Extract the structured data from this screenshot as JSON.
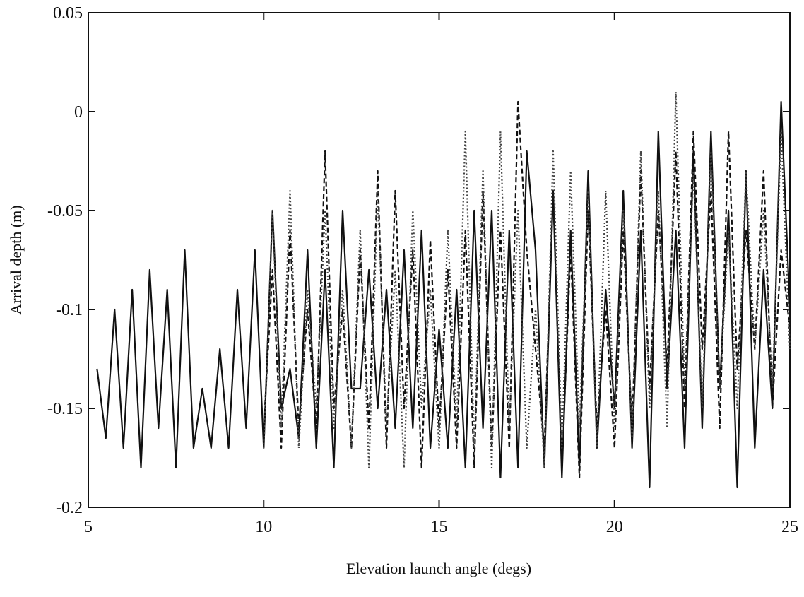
{
  "chart_data": {
    "type": "line",
    "xlabel": "Elevation launch angle (degs)",
    "ylabel": "Arrival depth (m)",
    "x": [
      5.25,
      5.5,
      5.75,
      6,
      6.25,
      6.5,
      6.75,
      7,
      7.25,
      7.5,
      7.75,
      8,
      8.25,
      8.5,
      8.75,
      9,
      9.25,
      9.5,
      9.75,
      10,
      10.25,
      10.5,
      10.75,
      11,
      11.25,
      11.5,
      11.75,
      12,
      12.25,
      12.5,
      12.75,
      13,
      13.25,
      13.5,
      13.75,
      14,
      14.25,
      14.5,
      14.75,
      15,
      15.25,
      15.5,
      15.75,
      16,
      16.25,
      16.5,
      16.75,
      17,
      17.25,
      17.5,
      17.75,
      18,
      18.25,
      18.5,
      18.75,
      19,
      19.25,
      19.5,
      19.75,
      20,
      20.25,
      20.5,
      20.75,
      21,
      21.25,
      21.5,
      21.75,
      22,
      22.25,
      22.5,
      22.75,
      23,
      23.25,
      23.5,
      23.75,
      24,
      24.25,
      24.5,
      24.75,
      25
    ],
    "series": [
      {
        "color": "#111111",
        "dash": "solid",
        "values": [
          -0.13,
          -0.165,
          -0.1,
          -0.17,
          -0.09,
          -0.18,
          -0.08,
          -0.16,
          -0.09,
          -0.18,
          -0.07,
          -0.17,
          -0.14,
          -0.17,
          -0.12,
          -0.17,
          -0.09,
          -0.16,
          -0.07,
          -0.17,
          -0.05,
          -0.15,
          -0.13,
          -0.165,
          -0.07,
          -0.17,
          -0.08,
          -0.18,
          -0.05,
          -0.14,
          -0.14,
          -0.08,
          -0.15,
          -0.09,
          -0.16,
          -0.07,
          -0.16,
          -0.06,
          -0.17,
          -0.11,
          -0.17,
          -0.09,
          -0.18,
          -0.05,
          -0.16,
          -0.05,
          -0.185,
          -0.06,
          -0.18,
          -0.02,
          -0.07,
          -0.18,
          -0.04,
          -0.185,
          -0.06,
          -0.18,
          -0.03,
          -0.17,
          -0.09,
          -0.15,
          -0.04,
          -0.17,
          -0.06,
          -0.19,
          -0.01,
          -0.14,
          -0.06,
          -0.17,
          -0.02,
          -0.16,
          -0.01,
          -0.14,
          -0.05,
          -0.19,
          -0.03,
          -0.17,
          -0.08,
          -0.15,
          0.005,
          -0.1
        ]
      },
      {
        "color": "#111111",
        "dash": "dashed",
        "values": [
          null,
          null,
          null,
          null,
          null,
          null,
          null,
          null,
          null,
          null,
          null,
          null,
          null,
          null,
          null,
          null,
          null,
          null,
          null,
          -0.16,
          -0.08,
          -0.17,
          -0.06,
          -0.16,
          -0.1,
          -0.16,
          -0.02,
          -0.15,
          -0.1,
          -0.17,
          -0.07,
          -0.16,
          -0.03,
          -0.17,
          -0.04,
          -0.15,
          -0.07,
          -0.18,
          -0.065,
          -0.16,
          -0.08,
          -0.17,
          -0.06,
          -0.18,
          -0.04,
          -0.17,
          -0.06,
          -0.17,
          0.005,
          -0.07,
          -0.12,
          -0.17,
          -0.04,
          -0.18,
          -0.07,
          -0.185,
          -0.05,
          -0.16,
          -0.1,
          -0.17,
          -0.06,
          -0.16,
          -0.03,
          -0.14,
          -0.05,
          -0.13,
          -0.02,
          -0.15,
          -0.01,
          -0.12,
          -0.04,
          -0.16,
          -0.01,
          -0.13,
          -0.06,
          -0.12,
          -0.03,
          -0.15,
          -0.07,
          -0.11
        ]
      },
      {
        "color": "#444444",
        "dash": "dotted",
        "values": [
          null,
          null,
          null,
          null,
          null,
          null,
          null,
          null,
          null,
          null,
          null,
          null,
          null,
          null,
          null,
          null,
          null,
          null,
          null,
          -0.17,
          -0.05,
          -0.16,
          -0.04,
          -0.17,
          -0.09,
          -0.15,
          -0.05,
          -0.16,
          -0.09,
          -0.17,
          -0.06,
          -0.18,
          -0.04,
          -0.16,
          -0.08,
          -0.18,
          -0.05,
          -0.15,
          -0.09,
          -0.17,
          -0.06,
          -0.16,
          -0.01,
          -0.17,
          -0.03,
          -0.18,
          -0.01,
          -0.16,
          -0.05,
          -0.17,
          -0.1,
          -0.18,
          -0.02,
          -0.17,
          -0.03,
          -0.16,
          -0.04,
          -0.17,
          -0.04,
          -0.16,
          -0.05,
          -0.165,
          -0.02,
          -0.15,
          -0.04,
          -0.16,
          0.01,
          -0.14,
          -0.03,
          -0.15,
          -0.02,
          -0.14,
          -0.06,
          -0.15,
          -0.03,
          -0.12,
          -0.05,
          -0.14,
          -0.01,
          -0.12
        ]
      }
    ],
    "xlim": [
      5,
      25
    ],
    "xticks": [
      5,
      10,
      15,
      20,
      25
    ],
    "ylim": [
      -0.2,
      0.05
    ],
    "yticks": [
      -0.2,
      -0.15,
      -0.1,
      -0.05,
      0,
      0.05
    ]
  }
}
